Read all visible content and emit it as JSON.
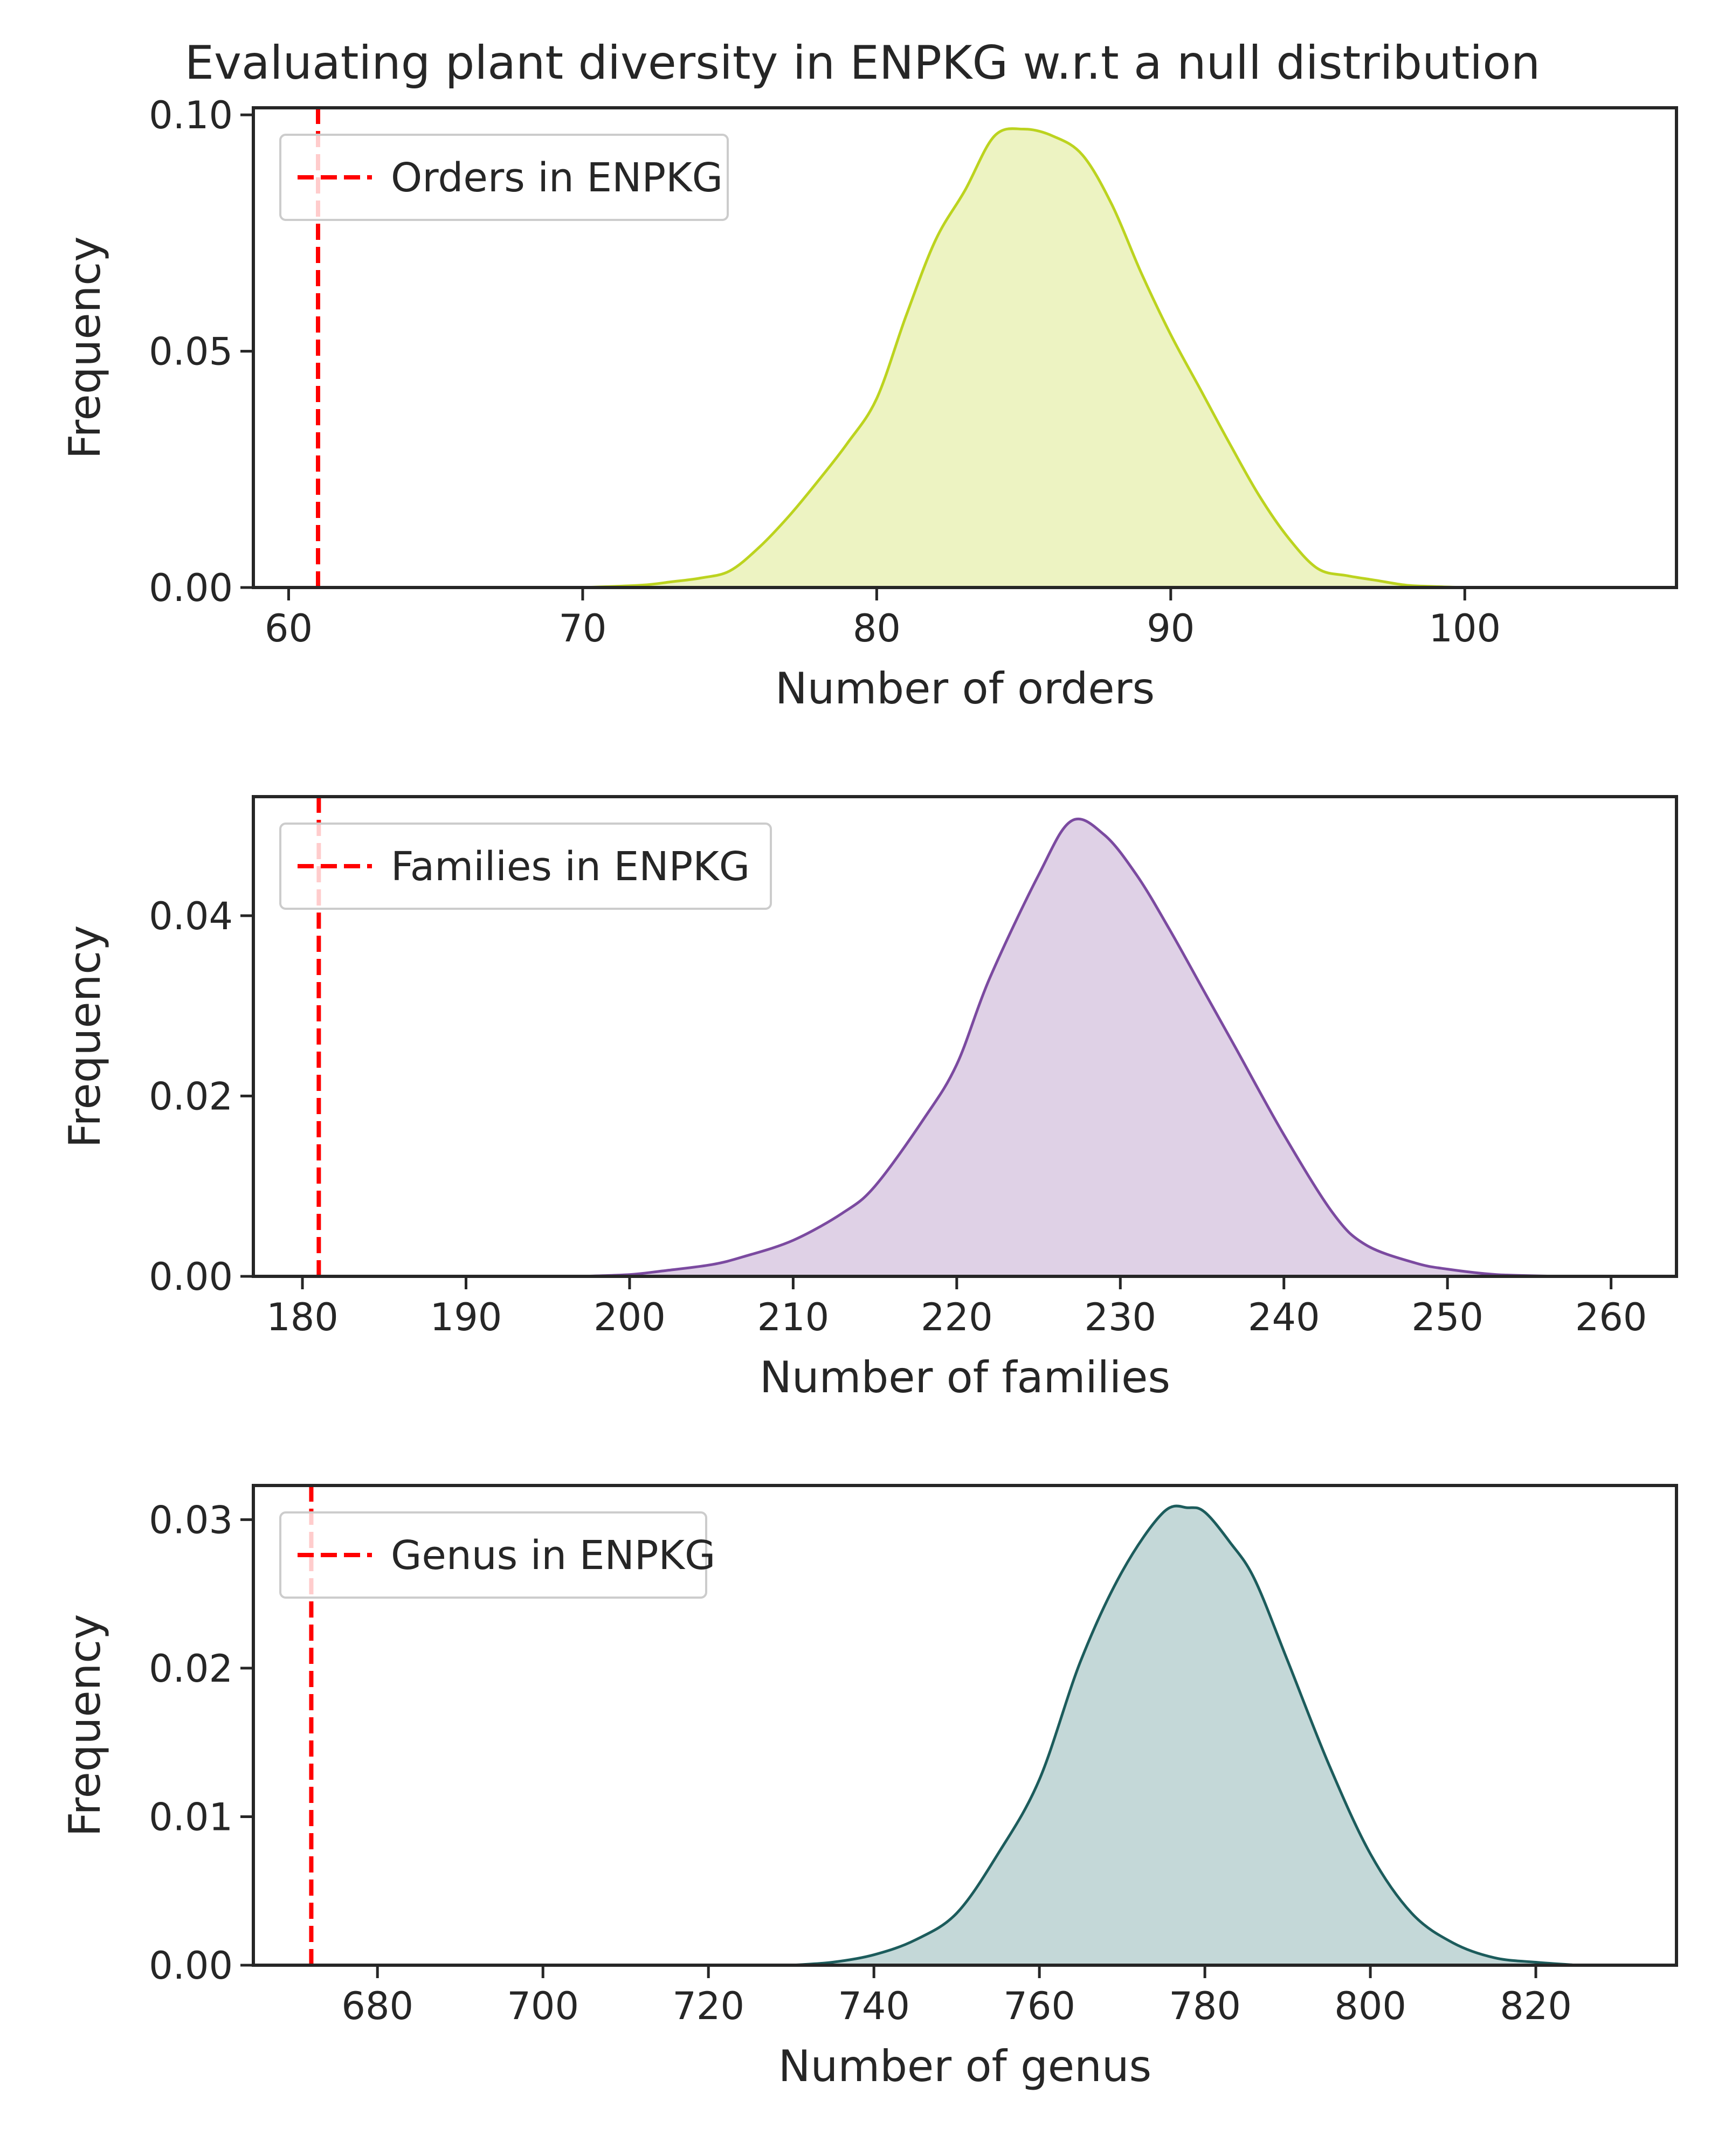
{
  "figure": {
    "title": "Evaluating plant diversity in ENPKG w.r.t a null distribution"
  },
  "chart_data": [
    {
      "type": "area",
      "xlabel": "Number of orders",
      "ylabel": "Frequency",
      "xlim": [
        58.8,
        107.2
      ],
      "ylim": [
        0,
        0.1015
      ],
      "x_ticks": [
        "60",
        "70",
        "80",
        "90",
        "100"
      ],
      "y_ticks": [
        "0.00",
        "0.05",
        "0.10"
      ],
      "series": [
        {
          "color": "#bcd31f",
          "fill": "#edf3c2",
          "x": [
            70,
            72,
            73,
            74,
            75,
            76,
            77,
            78,
            79,
            80,
            81,
            82,
            83,
            84,
            85,
            86,
            87,
            88,
            89,
            90,
            91,
            92,
            93,
            94,
            95,
            96,
            97,
            98,
            99,
            100
          ],
          "y": [
            0,
            0.0005,
            0.0012,
            0.002,
            0.0035,
            0.0085,
            0.015,
            0.0225,
            0.0305,
            0.04,
            0.0575,
            0.0735,
            0.084,
            0.0955,
            0.097,
            0.0955,
            0.0915,
            0.081,
            0.0665,
            0.0535,
            0.042,
            0.0305,
            0.0195,
            0.0105,
            0.004,
            0.0025,
            0.0015,
            0.0005,
            0.0002,
            0
          ]
        }
      ],
      "reference_line": {
        "x": 61,
        "color": "#ff0000",
        "label": "Orders in ENPKG"
      },
      "legend": "top-left",
      "grid": false
    },
    {
      "type": "area",
      "xlabel": "Number of families",
      "ylabel": "Frequency",
      "xlim": [
        177,
        264
      ],
      "ylim": [
        0,
        0.0532
      ],
      "x_ticks": [
        "180",
        "190",
        "200",
        "210",
        "220",
        "230",
        "240",
        "250",
        "260"
      ],
      "y_ticks": [
        "0.00",
        "0.02",
        "0.04"
      ],
      "series": [
        {
          "color": "#7b4aa0",
          "fill": "#dfd1e6",
          "x": [
            197,
            200,
            202,
            205,
            207,
            210,
            213,
            215,
            218,
            220,
            222,
            225,
            227,
            229,
            231,
            233,
            235,
            237,
            240,
            243,
            245,
            248,
            250,
            253,
            257
          ],
          "y": [
            0,
            0.0002,
            0.0006,
            0.0013,
            0.0022,
            0.004,
            0.007,
            0.01,
            0.0175,
            0.0235,
            0.033,
            0.0445,
            0.0505,
            0.049,
            0.0445,
            0.0385,
            0.032,
            0.0255,
            0.0157,
            0.007,
            0.0035,
            0.0015,
            0.0008,
            0.0002,
            0
          ]
        }
      ],
      "reference_line": {
        "x": 181,
        "color": "#ff0000",
        "label": "Families in ENPKG"
      },
      "legend": "top-left",
      "grid": false
    },
    {
      "type": "area",
      "xlabel": "Number of genus",
      "ylabel": "Frequency",
      "xlim": [
        665,
        837
      ],
      "ylim": [
        0,
        0.0323
      ],
      "x_ticks": [
        "680",
        "700",
        "720",
        "740",
        "760",
        "780",
        "800",
        "820"
      ],
      "y_ticks": [
        "0.00",
        "0.01",
        "0.02",
        "0.03"
      ],
      "series": [
        {
          "color": "#1c5c5c",
          "fill": "#c4d8d8",
          "x": [
            730,
            735,
            740,
            745,
            750,
            755,
            760,
            765,
            770,
            775,
            778,
            780,
            783,
            786,
            790,
            795,
            800,
            805,
            810,
            815,
            820,
            825
          ],
          "y": [
            0,
            0.0002,
            0.0007,
            0.0017,
            0.0035,
            0.0075,
            0.0125,
            0.0205,
            0.0265,
            0.0305,
            0.0308,
            0.0305,
            0.0285,
            0.026,
            0.0205,
            0.0135,
            0.0075,
            0.0035,
            0.0015,
            0.0005,
            0.0002,
            0
          ]
        }
      ],
      "reference_line": {
        "x": 672,
        "color": "#ff0000",
        "label": "Genus in ENPKG"
      },
      "legend": "top-left",
      "grid": false
    }
  ]
}
